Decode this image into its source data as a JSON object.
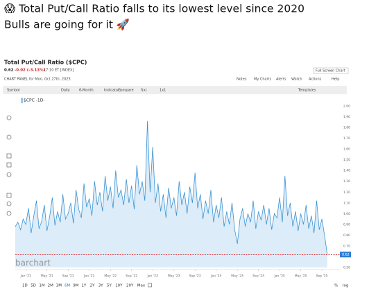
{
  "tweet": {
    "line1": "😱 Total Put/Call Ratio falls to its lowest level since 2020",
    "line2": "Bulls are going for it 🚀"
  },
  "header": {
    "title": "Total Put/Call Ratio ($CPC)",
    "last": "0.62",
    "change": "-0.02 (-3.13%)",
    "time": "17:10 ET [INDEX]",
    "panel": "CHART PANEL for Mon, Oct 27th, 2025",
    "fullscreen": "Full Screen Chart"
  },
  "toolbar": {
    "left": [
      "Symbol",
      "Daily",
      "6-Month",
      "Indicators",
      "Compare",
      "f(x)",
      "1x1"
    ],
    "right": [
      "Notes",
      "My Charts",
      "Alerts",
      "Watch",
      "Actions",
      "Help"
    ],
    "templates": "Templates"
  },
  "brand": "barchart",
  "periods": [
    "1D",
    "5D",
    "1M",
    "2M",
    "3M",
    "6M",
    "9M",
    "1Y",
    "2Y",
    "3Y",
    "5Y",
    "10Y",
    "20Y",
    "Max"
  ],
  "scale_options": [
    "%",
    "log"
  ],
  "chart_data": {
    "type": "line",
    "series": [
      {
        "name": "$CPC -1D-",
        "color": "#3a93d4",
        "values": [
          0.88,
          0.92,
          0.85,
          0.95,
          0.9,
          1.05,
          0.82,
          0.98,
          1.12,
          0.86,
          0.93,
          1.08,
          0.84,
          0.97,
          1.15,
          0.89,
          1.02,
          0.92,
          1.18,
          0.95,
          1.0,
          1.1,
          0.91,
          1.22,
          1.04,
          0.96,
          1.28,
          1.06,
          1.14,
          0.98,
          1.3,
          1.08,
          1.2,
          1.02,
          1.35,
          1.12,
          1.25,
          1.05,
          1.4,
          1.15,
          1.22,
          1.08,
          1.32,
          1.1,
          1.26,
          1.04,
          1.45,
          1.18,
          1.3,
          1.12,
          1.86,
          1.2,
          1.62,
          1.1,
          1.28,
          1.02,
          1.18,
          0.96,
          1.24,
          1.05,
          1.15,
          0.98,
          1.3,
          1.08,
          1.2,
          1.0,
          1.25,
          1.1,
          1.38,
          1.05,
          1.18,
          0.95,
          1.12,
          1.0,
          1.22,
          0.92,
          1.08,
          0.96,
          1.15,
          0.88,
          1.02,
          0.9,
          1.1,
          0.85,
          0.72,
          0.95,
          1.05,
          0.88,
          1.0,
          0.92,
          1.12,
          0.86,
          1.02,
          0.94,
          1.08,
          0.9,
          1.05,
          0.85,
          1.0,
          0.96,
          1.15,
          0.92,
          1.35,
          0.98,
          1.1,
          0.88,
          1.02,
          0.84,
          1.0,
          0.9,
          1.08,
          0.86,
          0.98,
          0.82,
          1.12,
          0.85,
          0.95,
          0.8,
          0.62
        ]
      }
    ],
    "xlim": [
      0,
      122
    ],
    "xticks": [
      {
        "value": 4,
        "label": "Jan '21"
      },
      {
        "value": 12,
        "label": "May '21"
      },
      {
        "value": 20,
        "label": "Sep '21"
      },
      {
        "value": 28,
        "label": "Jan '22"
      },
      {
        "value": 36,
        "label": "May '22"
      },
      {
        "value": 44,
        "label": "Sep '22"
      },
      {
        "value": 52,
        "label": "Jan '23"
      },
      {
        "value": 60,
        "label": "May '23"
      },
      {
        "value": 68,
        "label": "Sep '23"
      },
      {
        "value": 76,
        "label": "Jan '24"
      },
      {
        "value": 84,
        "label": "May '24"
      },
      {
        "value": 92,
        "label": "Sep '24"
      },
      {
        "value": 100,
        "label": "Jan '25"
      },
      {
        "value": 108,
        "label": "May '25"
      },
      {
        "value": 116,
        "label": "Sep '25"
      }
    ],
    "ylim": [
      0.5,
      2.0
    ],
    "yticks": [
      {
        "value": 2.0,
        "label": "2.00"
      },
      {
        "value": 1.9,
        "label": "1.90"
      },
      {
        "value": 1.8,
        "label": "1.80"
      },
      {
        "value": 1.7,
        "label": "1.70"
      },
      {
        "value": 1.6,
        "label": "1.60"
      },
      {
        "value": 1.5,
        "label": "1.50"
      },
      {
        "value": 1.4,
        "label": "1.40"
      },
      {
        "value": 1.3,
        "label": "1.30"
      },
      {
        "value": 1.2,
        "label": "1.20"
      },
      {
        "value": 1.1,
        "label": "1.10"
      },
      {
        "value": 1.0,
        "label": "1.00"
      },
      {
        "value": 0.9,
        "label": "0.90"
      },
      {
        "value": 0.8,
        "label": "0.80"
      },
      {
        "value": 0.7,
        "label": "0.70"
      },
      {
        "value": 0.5,
        "label": "0.50"
      }
    ],
    "hline": {
      "value": 0.62,
      "color": "#d62020"
    },
    "area": true,
    "grid": false
  }
}
